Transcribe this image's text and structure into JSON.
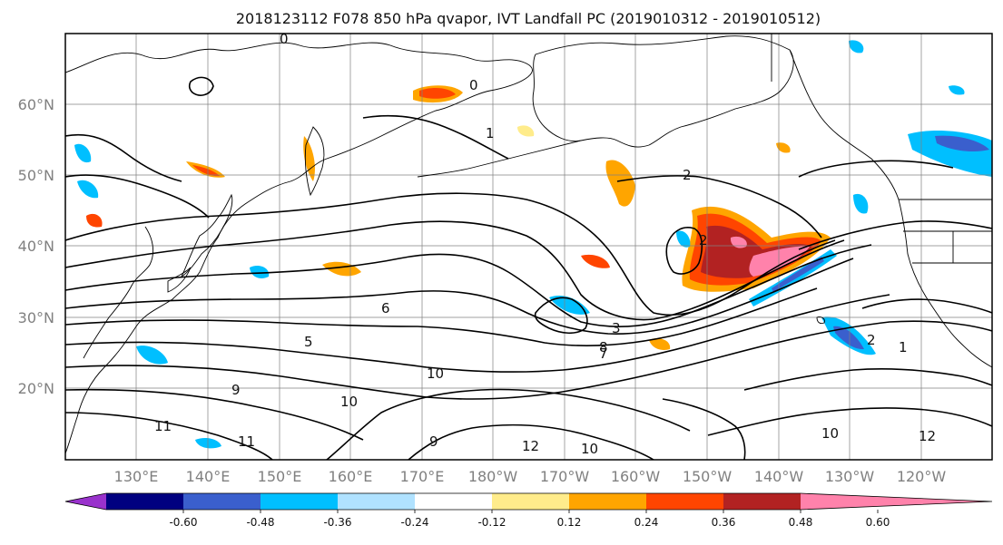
{
  "title": "2018123112 F078 850 hPa qvapor, IVT Landfall PC (2019010312 - 2019010512)",
  "lat_labels": [
    "60°N",
    "50°N",
    "40°N",
    "30°N",
    "20°N"
  ],
  "lon_labels": [
    "130°E",
    "140°E",
    "150°E",
    "160°E",
    "170°E",
    "180°W",
    "170°W",
    "160°W",
    "150°W",
    "140°W",
    "130°W",
    "120°W"
  ],
  "colorbar": {
    "ticks": [
      "-0.60",
      "-0.48",
      "-0.36",
      "-0.24",
      "-0.12",
      "0.12",
      "0.24",
      "0.36",
      "0.48",
      "0.60"
    ],
    "colors": [
      "#9932cc",
      "#000080",
      "#3a5fcd",
      "#00bfff",
      "#b0e2ff",
      "#ffffff",
      "#ffec8b",
      "#ffa500",
      "#ff4500",
      "#b22222",
      "#ff82ab"
    ]
  },
  "contour_labels": [
    "0",
    "1",
    "2",
    "2",
    "3",
    "5",
    "6",
    "7",
    "8",
    "9",
    "10",
    "10",
    "11",
    "11",
    "12",
    "9",
    "10",
    "10",
    "12",
    "1",
    "2",
    "0"
  ]
}
